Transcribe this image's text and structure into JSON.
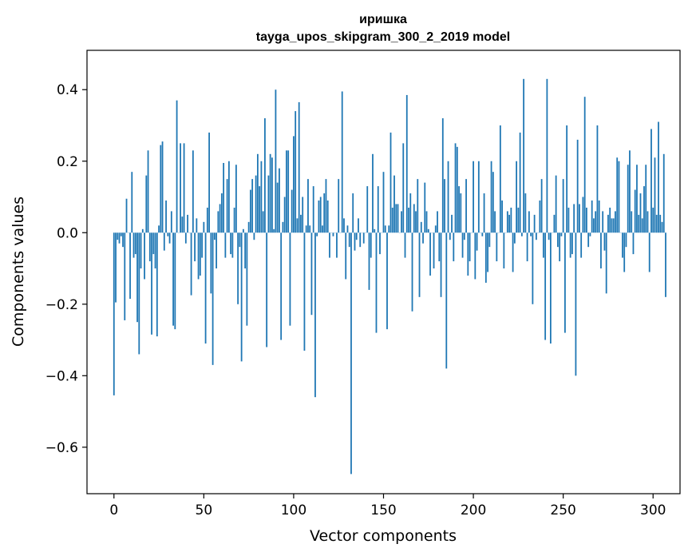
{
  "chart_data": {
    "type": "bar",
    "title": "иришка",
    "subtitle": "tayga_upos_skipgram_300_2_2019 model",
    "xlabel": "Vector components",
    "ylabel": "Components values",
    "xlim": [
      -15,
      315
    ],
    "ylim": [
      -0.73,
      0.51
    ],
    "xticks": [
      0,
      50,
      100,
      150,
      200,
      250,
      300
    ],
    "xtick_labels": [
      "0",
      "50",
      "100",
      "150",
      "200",
      "250",
      "300"
    ],
    "yticks": [
      -0.6,
      -0.4,
      -0.2,
      0.0,
      0.2,
      0.4
    ],
    "ytick_labels": [
      "−0.6",
      "−0.4",
      "−0.2",
      "0.0",
      "0.2",
      "0.4"
    ],
    "grid": false,
    "bar_color": "#1f77b4",
    "values": [
      -0.455,
      -0.195,
      -0.02,
      -0.03,
      -0.01,
      -0.04,
      -0.245,
      0.095,
      0.0,
      -0.185,
      0.17,
      -0.07,
      -0.06,
      -0.25,
      -0.34,
      -0.1,
      0.01,
      -0.13,
      0.16,
      0.23,
      -0.08,
      -0.285,
      -0.06,
      -0.1,
      -0.29,
      0.02,
      0.245,
      0.255,
      -0.05,
      0.09,
      -0.01,
      -0.03,
      0.06,
      -0.26,
      -0.27,
      0.37,
      0.0,
      0.25,
      0.045,
      0.25,
      -0.03,
      0.05,
      0.0,
      -0.175,
      0.23,
      -0.08,
      0.04,
      -0.13,
      -0.12,
      -0.07,
      0.03,
      -0.31,
      0.07,
      0.28,
      -0.17,
      -0.37,
      -0.02,
      -0.1,
      0.06,
      0.08,
      0.11,
      0.195,
      -0.07,
      0.15,
      0.2,
      -0.06,
      -0.07,
      0.07,
      0.19,
      -0.2,
      -0.04,
      -0.36,
      0.01,
      -0.1,
      -0.26,
      0.03,
      0.12,
      0.15,
      -0.02,
      0.16,
      0.22,
      0.13,
      0.2,
      0.06,
      0.32,
      -0.32,
      0.16,
      0.22,
      0.21,
      0.01,
      0.4,
      0.14,
      0.18,
      -0.3,
      0.03,
      0.1,
      0.23,
      0.23,
      -0.26,
      0.12,
      0.27,
      0.34,
      0.04,
      0.365,
      0.05,
      0.1,
      -0.33,
      0.02,
      0.15,
      0.02,
      -0.23,
      0.13,
      -0.46,
      -0.01,
      0.09,
      0.1,
      0.02,
      0.11,
      0.15,
      0.09,
      -0.07,
      0.0,
      -0.01,
      0.0,
      -0.07,
      0.15,
      0.0,
      0.395,
      0.04,
      -0.13,
      0.02,
      -0.04,
      -0.675,
      0.11,
      -0.05,
      -0.02,
      0.04,
      -0.04,
      0.0,
      -0.03,
      0.0,
      0.13,
      -0.16,
      -0.07,
      0.22,
      0.01,
      -0.28,
      0.13,
      -0.06,
      0.0,
      0.17,
      0.02,
      -0.27,
      0.02,
      0.28,
      0.07,
      0.16,
      0.08,
      0.08,
      0.0,
      0.06,
      0.25,
      -0.07,
      0.385,
      0.07,
      0.11,
      -0.22,
      0.08,
      0.06,
      0.15,
      -0.18,
      0.03,
      -0.03,
      0.14,
      0.06,
      0.01,
      -0.12,
      0.0,
      -0.1,
      0.02,
      0.06,
      -0.08,
      -0.18,
      0.32,
      0.15,
      -0.38,
      0.2,
      -0.02,
      0.05,
      -0.08,
      0.25,
      0.24,
      0.13,
      0.11,
      -0.07,
      -0.02,
      0.15,
      -0.12,
      -0.08,
      0.0,
      0.2,
      -0.13,
      -0.05,
      0.2,
      0.0,
      -0.01,
      0.11,
      -0.14,
      -0.11,
      -0.04,
      0.2,
      0.17,
      0.06,
      -0.08,
      0.0,
      0.3,
      0.09,
      -0.1,
      0.0,
      0.06,
      0.05,
      0.07,
      -0.11,
      -0.03,
      0.2,
      0.07,
      0.28,
      -0.01,
      0.43,
      0.11,
      -0.08,
      0.06,
      -0.01,
      -0.2,
      0.05,
      -0.02,
      0.0,
      0.09,
      0.15,
      -0.07,
      -0.3,
      0.43,
      -0.02,
      -0.31,
      0.0,
      0.05,
      0.16,
      -0.04,
      -0.08,
      -0.01,
      0.15,
      -0.28,
      0.3,
      0.07,
      -0.07,
      -0.06,
      0.08,
      -0.4,
      0.26,
      0.08,
      -0.07,
      0.1,
      0.38,
      0.07,
      -0.04,
      -0.01,
      0.09,
      0.04,
      0.06,
      0.3,
      0.09,
      -0.1,
      0.06,
      -0.05,
      -0.17,
      0.05,
      0.07,
      0.04,
      0.04,
      0.06,
      0.21,
      0.2,
      0.0,
      -0.07,
      -0.11,
      -0.04,
      0.19,
      0.23,
      0.06,
      -0.06,
      0.12,
      0.19,
      0.05,
      0.11,
      0.04,
      0.13,
      0.19,
      0.06,
      -0.11,
      0.29,
      0.07,
      0.21,
      0.05,
      0.31,
      0.05,
      0.03,
      0.22,
      -0.18
    ]
  }
}
